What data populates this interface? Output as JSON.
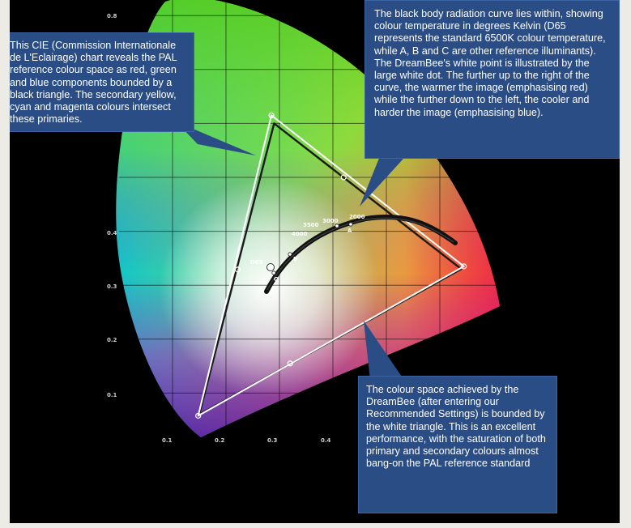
{
  "callouts": {
    "cie": "This CIE (Commission Internationale de L'Eclairage) chart reveals the PAL reference colour space as red, green and blue components bounded by a black triangle. The secondary yellow, cyan and magenta colours intersect these primaries.",
    "blackbody": "The black body radiation curve lies within, showing colour temperature in degrees Kelvin (D65 represents the standard 6500K colour temperature, while A, B and C are other reference illuminants). The DreamBee's white point is illustrated by the large white dot. The further up to the right of the curve, the warmer the image (emphasising red) while the further down to the left, the cooler and harder the image (emphasising blue).",
    "dreambee": "The colour space achieved by the DreamBee (after entering our Recommended Settings) is bounded by the white triangle. This is an excellent performance, with the saturation of both primary and secondary colours almost bang-on the PAL reference standard"
  },
  "axes": {
    "x_ticks": [
      "0.1",
      "0.2",
      "0.3",
      "0.4"
    ],
    "y_ticks": [
      "0.8",
      "0.4",
      "0.3",
      "0.2",
      "0.1"
    ]
  },
  "curve_labels": {
    "k2000": "2000",
    "k3000": "3000",
    "k3500": "3500",
    "k4000": "4000",
    "a": "A",
    "b": "B",
    "c": "C",
    "d65": "D65"
  },
  "colors": {
    "callout_bg": "#2a4d86",
    "background": "#000000",
    "page": "#ecebe6"
  },
  "chart_data": {
    "type": "scatter",
    "title": "",
    "xlabel": "",
    "ylabel": "",
    "xlim": [
      0,
      0.75
    ],
    "ylim": [
      0,
      0.85
    ],
    "x_ticks": [
      0.1,
      0.2,
      0.3,
      0.4
    ],
    "y_ticks": [
      0.1,
      0.2,
      0.3,
      0.4,
      0.8
    ],
    "grid": true,
    "reference_triangle": [
      [
        0.64,
        0.33
      ],
      [
        0.29,
        0.6
      ],
      [
        0.15,
        0.06
      ]
    ],
    "dreambee_triangle": [
      [
        0.645,
        0.335
      ],
      [
        0.285,
        0.615
      ],
      [
        0.148,
        0.058
      ]
    ],
    "white_point": [
      0.313,
      0.329
    ],
    "illuminants": [
      {
        "name": "A",
        "x": 0.448,
        "y": 0.408
      },
      {
        "name": "B",
        "x": 0.348,
        "y": 0.352
      },
      {
        "name": "C",
        "x": 0.31,
        "y": 0.316
      },
      {
        "name": "D65",
        "x": 0.313,
        "y": 0.329
      }
    ],
    "blackbody_kelvin": [
      {
        "name": "2000",
        "x": 0.527,
        "y": 0.413
      },
      {
        "name": "3000",
        "x": 0.437,
        "y": 0.404
      },
      {
        "name": "3500",
        "x": 0.405,
        "y": 0.391
      },
      {
        "name": "4000",
        "x": 0.38,
        "y": 0.377
      }
    ]
  }
}
